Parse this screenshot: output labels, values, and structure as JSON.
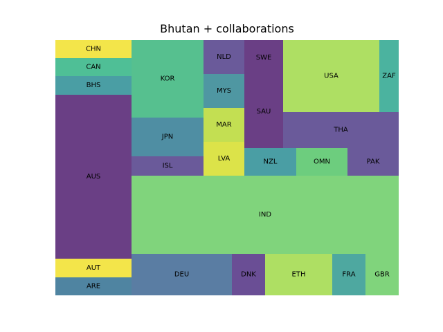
{
  "chart_data": {
    "type": "treemap",
    "title": "Bhutan + collaborations",
    "values_note": "relative area values (estimated from the treemap)",
    "cells": [
      {
        "label": "CHN",
        "value": 2.8,
        "color": "#f3e54a"
      },
      {
        "label": "CAN",
        "value": 2.8,
        "color": "#4fbf96"
      },
      {
        "label": "BHS",
        "value": 2.8,
        "color": "#4a9ea4"
      },
      {
        "label": "AUS",
        "value": 26.1,
        "color": "#6a3f85"
      },
      {
        "label": "AUT",
        "value": 2.9,
        "color": "#f3e54a"
      },
      {
        "label": "ARE",
        "value": 2.9,
        "color": "#4f84a1"
      },
      {
        "label": "KOR",
        "value": 11.6,
        "color": "#56c08f"
      },
      {
        "label": "JPN",
        "value": 6.0,
        "color": "#4f8ea3"
      },
      {
        "label": "ISL",
        "value": 2.9,
        "color": "#6a5a9a"
      },
      {
        "label": "NLD",
        "value": 2.9,
        "color": "#6a5a9a"
      },
      {
        "label": "MYS",
        "value": 2.9,
        "color": "#4f97a2"
      },
      {
        "label": "MAR",
        "value": 2.9,
        "color": "#c3df52"
      },
      {
        "label": "LVA",
        "value": 2.9,
        "color": "#dce349"
      },
      {
        "label": "SWE",
        "value": 2.9,
        "color": "#6a3f85"
      },
      {
        "label": "SAU",
        "value": 5.7,
        "color": "#6a3f85"
      },
      {
        "label": "USA",
        "value": 14.4,
        "color": "#aedf63"
      },
      {
        "label": "ZAF",
        "value": 2.9,
        "color": "#4bb39f"
      },
      {
        "label": "THA",
        "value": 8.5,
        "color": "#6a5a9a"
      },
      {
        "label": "NZL",
        "value": 2.9,
        "color": "#4a9ea4"
      },
      {
        "label": "OMN",
        "value": 2.9,
        "color": "#6dcd7e"
      },
      {
        "label": "PAK",
        "value": 2.9,
        "color": "#6a5a9a"
      },
      {
        "label": "IND",
        "value": 43.8,
        "color": "#80d47c"
      },
      {
        "label": "DEU",
        "value": 8.6,
        "color": "#5a7da3"
      },
      {
        "label": "DNK",
        "value": 2.9,
        "color": "#6a4e95"
      },
      {
        "label": "ETH",
        "value": 5.8,
        "color": "#aedf63"
      },
      {
        "label": "FRA",
        "value": 2.9,
        "color": "#4ea8a0"
      },
      {
        "label": "GBR",
        "value": 2.9,
        "color": "#80d47c"
      }
    ]
  }
}
